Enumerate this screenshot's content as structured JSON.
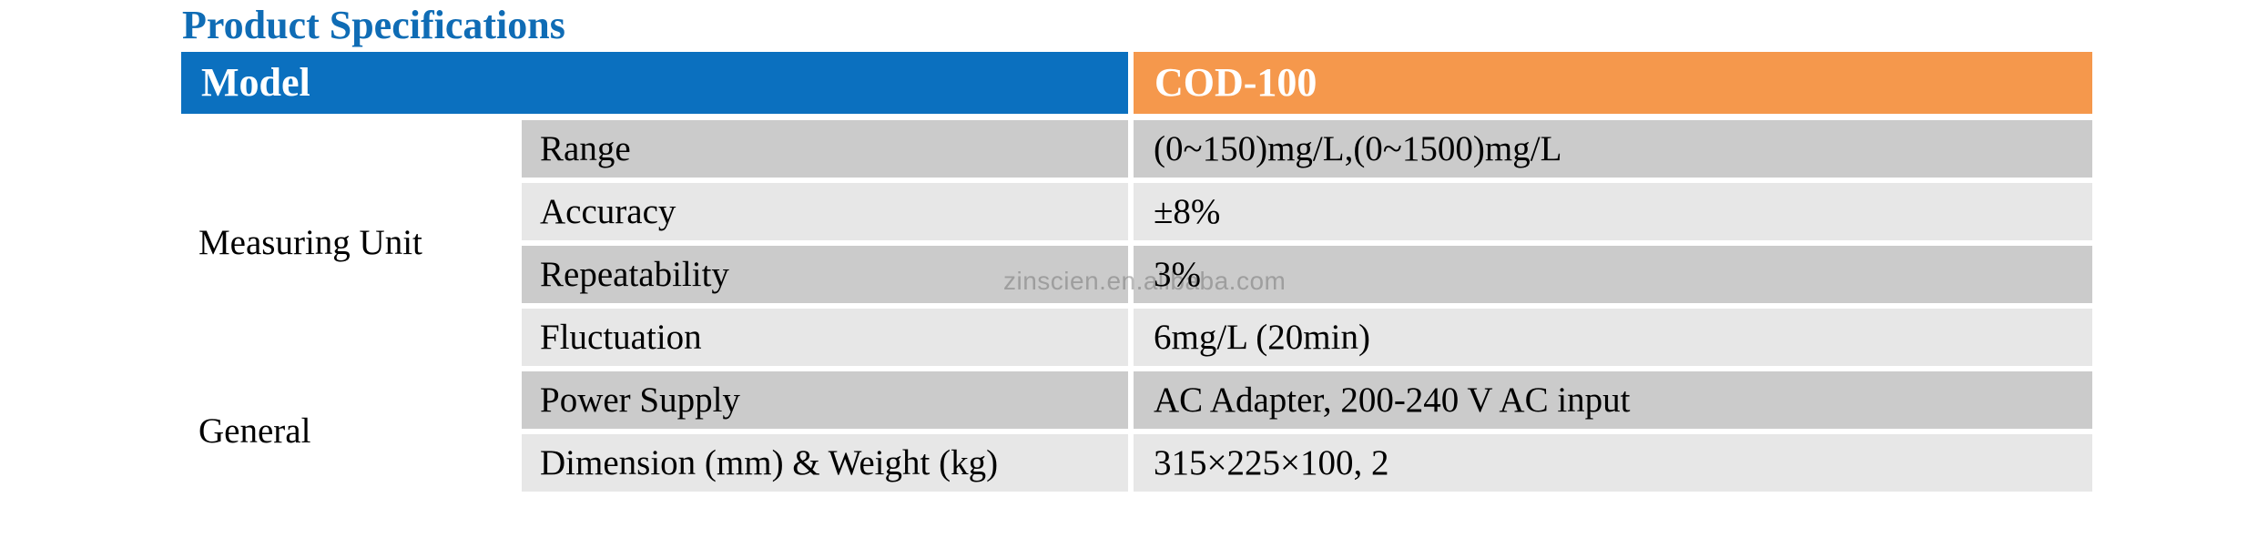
{
  "page": {
    "title": "Product Specifications"
  },
  "table": {
    "header": {
      "model_label": "Model",
      "product_label": "COD-100"
    },
    "groups": [
      {
        "label": "Measuring Unit",
        "rows": [
          {
            "param": "Range",
            "value": "(0~150)mg/L,(0~1500)mg/L"
          },
          {
            "param": "Accuracy",
            "value": "±8%"
          },
          {
            "param": "Repeatability",
            "value": "3%"
          },
          {
            "param": "Fluctuation",
            "value": "6mg/L (20min)"
          }
        ]
      },
      {
        "label": "General",
        "rows": [
          {
            "param": "Power Supply",
            "value": "AC Adapter, 200-240 V AC input"
          },
          {
            "param": "Dimension (mm) & Weight (kg)",
            "value": "315×225×100, 2"
          }
        ]
      }
    ],
    "colors": {
      "header_model_bg": "#0b70bf",
      "header_product_bg": "#f5984c",
      "row_dark_bg": "#cbcbcb",
      "row_light_bg": "#e7e7e7",
      "title_text": "#0f6cb5",
      "header_text": "#ffffff",
      "body_text": "#000000"
    }
  },
  "watermark": {
    "text": "zinscien.en.alibaba.com"
  }
}
